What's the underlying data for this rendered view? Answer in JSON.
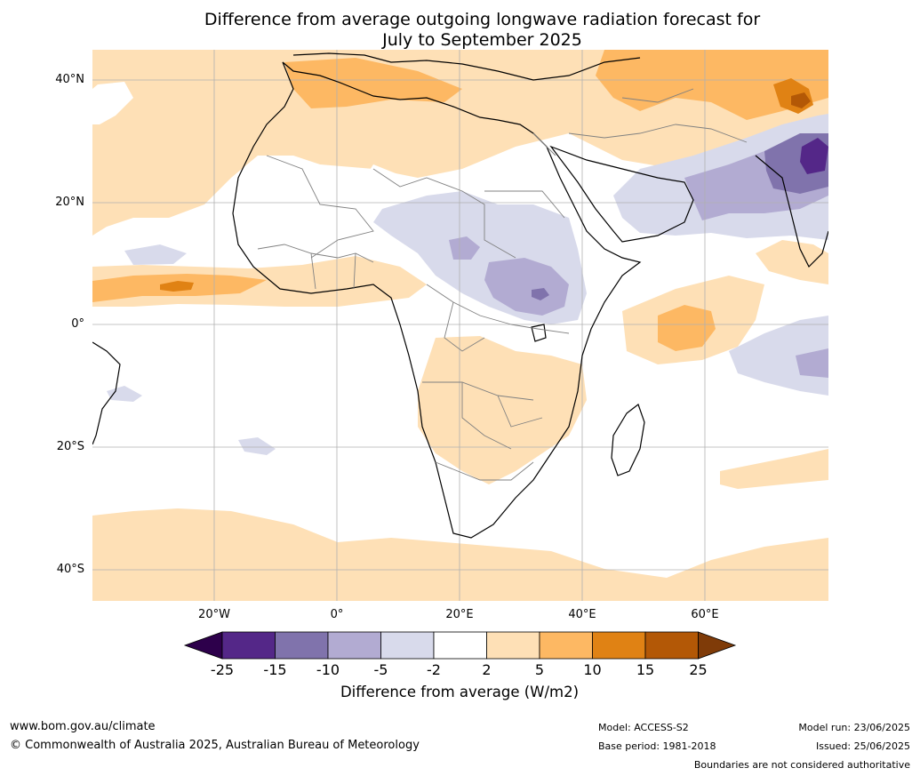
{
  "title": {
    "line1": "Difference from average outgoing longwave radiation forecast for",
    "line2": "July to September 2025"
  },
  "map": {
    "lat_labels": [
      "40°N",
      "20°N",
      "0°",
      "20°S",
      "40°S"
    ],
    "lon_labels": [
      "20°W",
      "0°",
      "20°E",
      "40°E",
      "60°E"
    ],
    "colors": {
      "ocean_land_neutral": "#ffffff",
      "pos_2_5": "#fee0b6",
      "pos_5_10": "#fdb863",
      "pos_10_15": "#e08214",
      "pos_15_25": "#b35806",
      "pos_gt25": "#7f3b08",
      "neg_2_5": "#d8daeb",
      "neg_5_10": "#b2abd2",
      "neg_10_15": "#8073ac",
      "neg_15_25": "#542788",
      "neg_lt25": "#2d004b",
      "coastline": "#000000",
      "borders": "#808080",
      "gridlines": "#b0b0b0"
    }
  },
  "colorbar": {
    "ticks": [
      "-25",
      "-15",
      "-10",
      "-5",
      "-2",
      "2",
      "5",
      "10",
      "15",
      "25"
    ],
    "label": "Difference from average (W/m2)"
  },
  "footer": {
    "website": "www.bom.gov.au/climate",
    "copyright": "© Commonwealth of Australia 2025, Australian Bureau of Meteorology",
    "model": "Model: ACCESS-S2",
    "base_period": "Base period: 1981-2018",
    "model_run": "Model run: 23/06/2025",
    "issued": "Issued: 25/06/2025",
    "disclaimer": "Boundaries are not considered authoritative"
  }
}
